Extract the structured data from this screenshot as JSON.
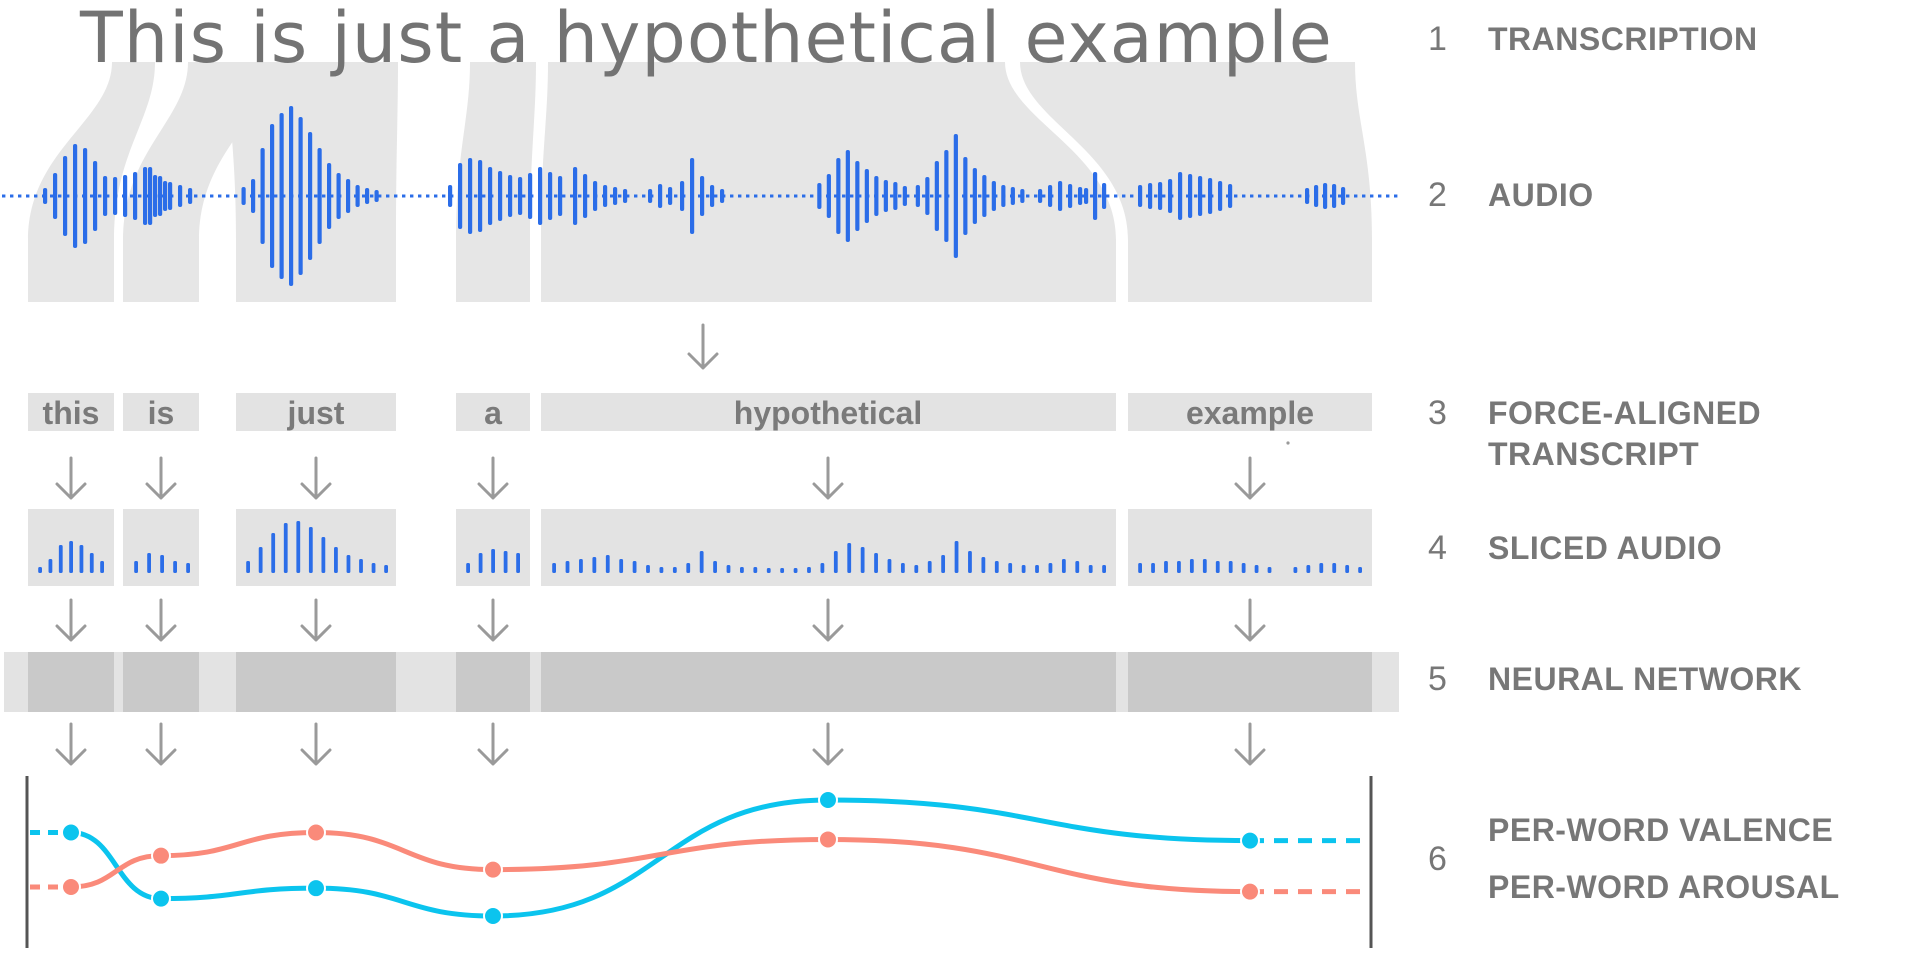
{
  "title": "This is just a hypothetical example",
  "steps": [
    {
      "number": "1",
      "label": "TRANSCRIPTION"
    },
    {
      "number": "2",
      "label": "AUDIO"
    },
    {
      "number": "3",
      "label": "FORCE-ALIGNED",
      "label2": "TRANSCRIPT"
    },
    {
      "number": "4",
      "label": "SLICED AUDIO"
    },
    {
      "number": "5",
      "label": "NEURAL NETWORK"
    },
    {
      "number": "6",
      "label": "PER-WORD VALENCE",
      "label2": "PER-WORD AROUSAL"
    }
  ],
  "words": [
    "this",
    "is",
    "just",
    "a",
    "hypothetical",
    "example"
  ],
  "colors": {
    "waveform": "#2b6de8",
    "valence": "#0bc4ee",
    "arousal": "#fa8a7a",
    "word_box": "#e3e3e3",
    "network_box": "#c9c9c9",
    "network_band": "#e3e3e3",
    "text": "#777777"
  },
  "series": [
    {
      "color": "#0bc4ee",
      "values": [
        0.72,
        0.15,
        0.24,
        0.0,
        1.0,
        0.65
      ]
    },
    {
      "color": "#fa8a7a",
      "values": [
        0.25,
        0.52,
        0.72,
        0.4,
        0.66,
        0.21
      ]
    }
  ]
}
